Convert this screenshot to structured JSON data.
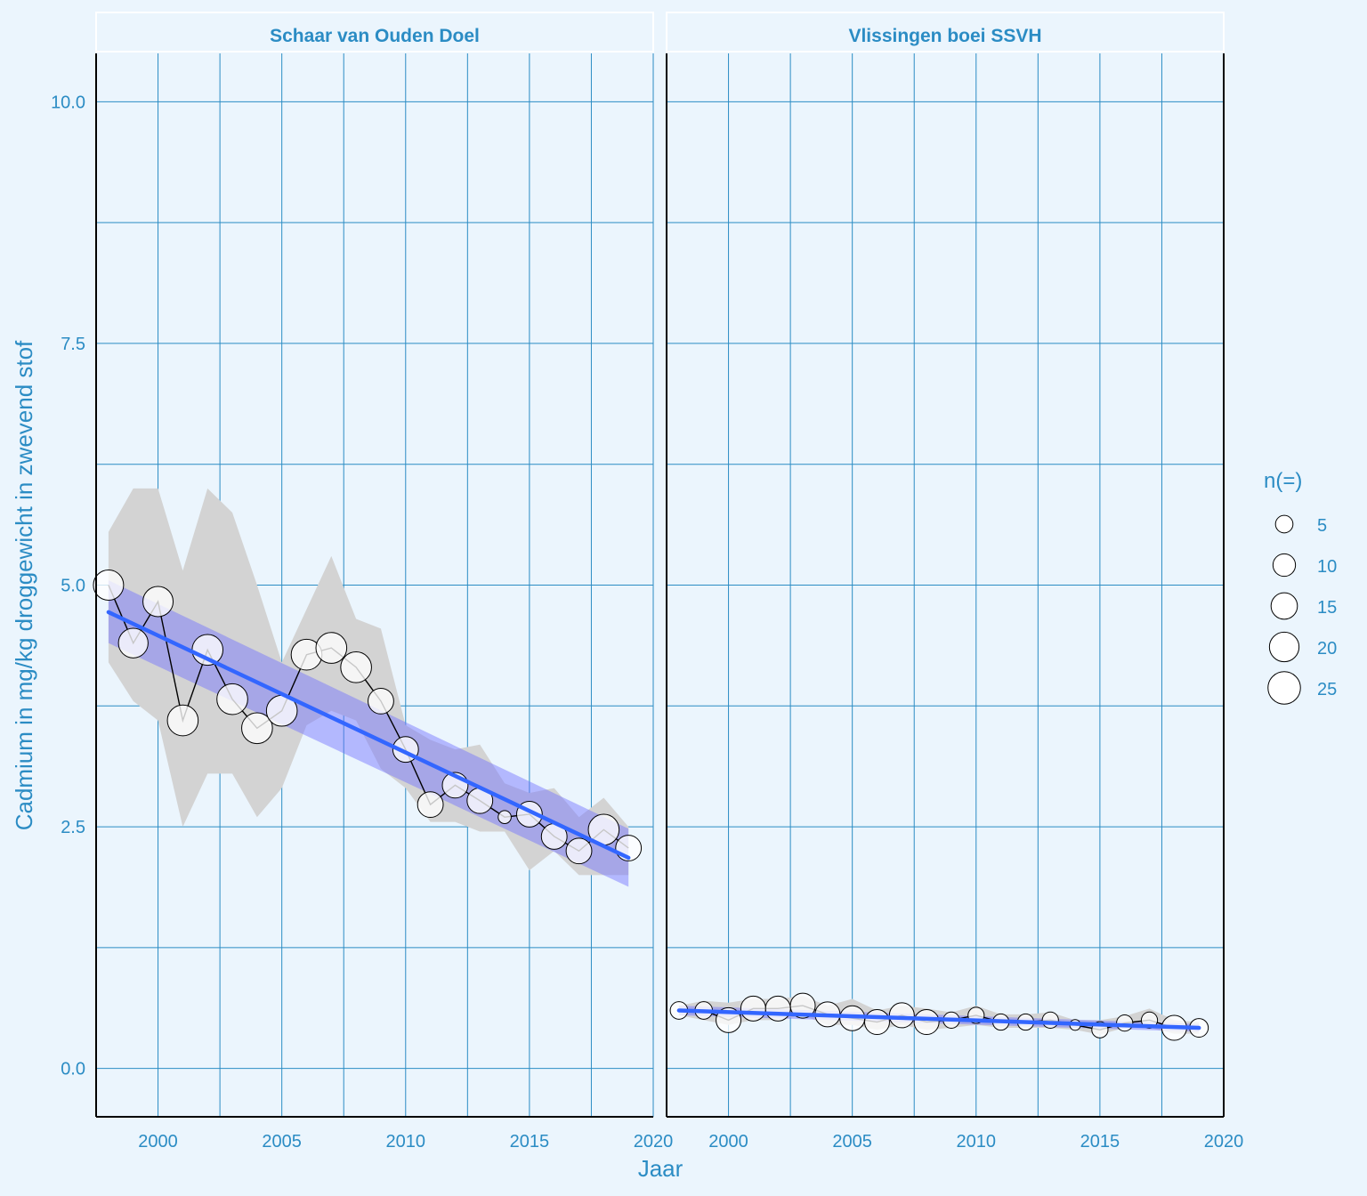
{
  "chart_data": {
    "type": "scatter",
    "xlabel": "Jaar",
    "ylabel": "Cadmium in mg/kg droggewicht in zwevend stof",
    "x_ticks": [
      2000,
      2005,
      2010,
      2015,
      2020
    ],
    "y_ticks": [
      "0.0",
      "2.5",
      "5.0",
      "7.5",
      "10.0"
    ],
    "xlim": [
      1997.5,
      2020
    ],
    "ylim": [
      -0.5,
      10.5
    ],
    "grid": true,
    "colors": {
      "background": "#ebf5fd",
      "grid": "#2b8cc4",
      "text": "#2b8cc4",
      "trend": "#3366ff",
      "trend_band": "#6f6fff",
      "range_band": "#d3d3d3",
      "point_fill": "#ffffff",
      "point_stroke": "#000000"
    },
    "legend": {
      "title": "n(=)",
      "placement": "right",
      "sizes": [
        {
          "label": "5",
          "n": 5
        },
        {
          "label": "10",
          "n": 10
        },
        {
          "label": "15",
          "n": 15
        },
        {
          "label": "20",
          "n": 20
        },
        {
          "label": "25",
          "n": 25
        }
      ]
    },
    "panels": [
      {
        "strip": "Schaar van Ouden Doel",
        "points": [
          {
            "x": 1998,
            "y": 5.0,
            "n": 21
          },
          {
            "x": 1999,
            "y": 4.4,
            "n": 20
          },
          {
            "x": 2000,
            "y": 4.83,
            "n": 21
          },
          {
            "x": 2001,
            "y": 3.6,
            "n": 22
          },
          {
            "x": 2002,
            "y": 4.33,
            "n": 22
          },
          {
            "x": 2003,
            "y": 3.82,
            "n": 22
          },
          {
            "x": 2004,
            "y": 3.52,
            "n": 22
          },
          {
            "x": 2005,
            "y": 3.7,
            "n": 22
          },
          {
            "x": 2006,
            "y": 4.28,
            "n": 22
          },
          {
            "x": 2007,
            "y": 4.35,
            "n": 22
          },
          {
            "x": 2008,
            "y": 4.15,
            "n": 22
          },
          {
            "x": 2009,
            "y": 3.8,
            "n": 14
          },
          {
            "x": 2010,
            "y": 3.3,
            "n": 14
          },
          {
            "x": 2011,
            "y": 2.73,
            "n": 14
          },
          {
            "x": 2012,
            "y": 2.93,
            "n": 14
          },
          {
            "x": 2013,
            "y": 2.77,
            "n": 14
          },
          {
            "x": 2014,
            "y": 2.6,
            "n": 2
          },
          {
            "x": 2015,
            "y": 2.63,
            "n": 14
          },
          {
            "x": 2016,
            "y": 2.4,
            "n": 14
          },
          {
            "x": 2017,
            "y": 2.25,
            "n": 14
          },
          {
            "x": 2018,
            "y": 2.47,
            "n": 22
          },
          {
            "x": 2019,
            "y": 2.28,
            "n": 14
          }
        ],
        "range_band": [
          {
            "x": 1998,
            "lo": 4.2,
            "hi": 5.55
          },
          {
            "x": 1999,
            "lo": 3.8,
            "hi": 6.0
          },
          {
            "x": 2000,
            "lo": 3.6,
            "hi": 6.0
          },
          {
            "x": 2001,
            "lo": 2.5,
            "hi": 5.15
          },
          {
            "x": 2002,
            "lo": 3.05,
            "hi": 6.0
          },
          {
            "x": 2003,
            "lo": 3.05,
            "hi": 5.75
          },
          {
            "x": 2004,
            "lo": 2.6,
            "hi": 5.0
          },
          {
            "x": 2005,
            "lo": 2.9,
            "hi": 4.2
          },
          {
            "x": 2006,
            "lo": 3.55,
            "hi": 4.75
          },
          {
            "x": 2007,
            "lo": 3.7,
            "hi": 5.3
          },
          {
            "x": 2008,
            "lo": 3.6,
            "hi": 4.65
          },
          {
            "x": 2009,
            "lo": 3.1,
            "hi": 4.55
          },
          {
            "x": 2010,
            "lo": 2.9,
            "hi": 3.55
          },
          {
            "x": 2011,
            "lo": 2.55,
            "hi": 3.4
          },
          {
            "x": 2012,
            "lo": 2.55,
            "hi": 3.3
          },
          {
            "x": 2013,
            "lo": 2.45,
            "hi": 3.35
          },
          {
            "x": 2014,
            "lo": 2.45,
            "hi": 2.95
          },
          {
            "x": 2015,
            "lo": 2.05,
            "hi": 2.85
          },
          {
            "x": 2016,
            "lo": 2.25,
            "hi": 2.9
          },
          {
            "x": 2017,
            "lo": 2.0,
            "hi": 2.6
          },
          {
            "x": 2018,
            "lo": 2.0,
            "hi": 2.8
          },
          {
            "x": 2019,
            "lo": 2.0,
            "hi": 2.5
          }
        ],
        "trend": {
          "x": [
            1998,
            2019
          ],
          "y": [
            4.72,
            2.18
          ],
          "ci_lo": [
            4.4,
            1.88
          ],
          "ci_hi": [
            5.05,
            2.48
          ]
        }
      },
      {
        "strip": "Vlissingen boei SSVH",
        "points": [
          {
            "x": 1998,
            "y": 0.6,
            "n": 5
          },
          {
            "x": 1999,
            "y": 0.6,
            "n": 5
          },
          {
            "x": 2000,
            "y": 0.5,
            "n": 13
          },
          {
            "x": 2001,
            "y": 0.62,
            "n": 13
          },
          {
            "x": 2002,
            "y": 0.62,
            "n": 13
          },
          {
            "x": 2003,
            "y": 0.65,
            "n": 13
          },
          {
            "x": 2004,
            "y": 0.56,
            "n": 13
          },
          {
            "x": 2005,
            "y": 0.52,
            "n": 13
          },
          {
            "x": 2006,
            "y": 0.48,
            "n": 13
          },
          {
            "x": 2007,
            "y": 0.55,
            "n": 13
          },
          {
            "x": 2008,
            "y": 0.48,
            "n": 13
          },
          {
            "x": 2009,
            "y": 0.5,
            "n": 4
          },
          {
            "x": 2010,
            "y": 0.55,
            "n": 4
          },
          {
            "x": 2011,
            "y": 0.48,
            "n": 4
          },
          {
            "x": 2012,
            "y": 0.48,
            "n": 4
          },
          {
            "x": 2013,
            "y": 0.5,
            "n": 4
          },
          {
            "x": 2014,
            "y": 0.45,
            "n": 1
          },
          {
            "x": 2015,
            "y": 0.4,
            "n": 4
          },
          {
            "x": 2016,
            "y": 0.47,
            "n": 4
          },
          {
            "x": 2017,
            "y": 0.5,
            "n": 4
          },
          {
            "x": 2018,
            "y": 0.42,
            "n": 13
          },
          {
            "x": 2019,
            "y": 0.42,
            "n": 6
          }
        ],
        "range_band": [
          {
            "x": 1998,
            "lo": 0.55,
            "hi": 0.65
          },
          {
            "x": 1999,
            "lo": 0.5,
            "hi": 0.7
          },
          {
            "x": 2000,
            "lo": 0.45,
            "hi": 0.68
          },
          {
            "x": 2001,
            "lo": 0.5,
            "hi": 0.72
          },
          {
            "x": 2002,
            "lo": 0.5,
            "hi": 0.72
          },
          {
            "x": 2003,
            "lo": 0.55,
            "hi": 0.75
          },
          {
            "x": 2004,
            "lo": 0.45,
            "hi": 0.65
          },
          {
            "x": 2005,
            "lo": 0.45,
            "hi": 0.72
          },
          {
            "x": 2006,
            "lo": 0.4,
            "hi": 0.6
          },
          {
            "x": 2007,
            "lo": 0.45,
            "hi": 0.65
          },
          {
            "x": 2008,
            "lo": 0.4,
            "hi": 0.62
          },
          {
            "x": 2009,
            "lo": 0.42,
            "hi": 0.58
          },
          {
            "x": 2010,
            "lo": 0.45,
            "hi": 0.65
          },
          {
            "x": 2011,
            "lo": 0.42,
            "hi": 0.56
          },
          {
            "x": 2012,
            "lo": 0.42,
            "hi": 0.56
          },
          {
            "x": 2013,
            "lo": 0.42,
            "hi": 0.58
          },
          {
            "x": 2014,
            "lo": 0.4,
            "hi": 0.5
          },
          {
            "x": 2015,
            "lo": 0.35,
            "hi": 0.5
          },
          {
            "x": 2016,
            "lo": 0.42,
            "hi": 0.54
          },
          {
            "x": 2017,
            "lo": 0.42,
            "hi": 0.62
          },
          {
            "x": 2018,
            "lo": 0.36,
            "hi": 0.5
          },
          {
            "x": 2019,
            "lo": 0.36,
            "hi": 0.48
          }
        ],
        "trend": {
          "x": [
            1998,
            2019
          ],
          "y": [
            0.6,
            0.42
          ],
          "ci_lo": [
            0.55,
            0.38
          ],
          "ci_hi": [
            0.65,
            0.46
          ]
        }
      }
    ]
  }
}
